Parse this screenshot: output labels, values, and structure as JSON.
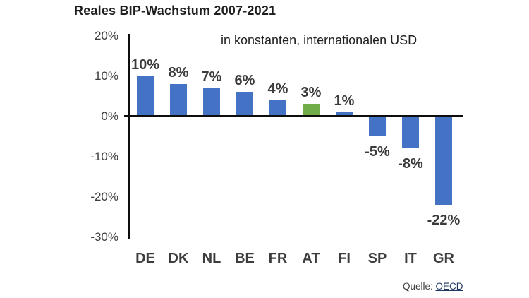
{
  "header": {
    "title": "Reales BIP-Wachstum 2007-2021",
    "subtitle": "in konstanten, internationalen USD"
  },
  "chart_data": {
    "type": "bar",
    "title": "Reales BIP-Wachstum 2007-2021",
    "subtitle": "in konstanten, internationalen USD",
    "categories": [
      "DE",
      "DK",
      "NL",
      "BE",
      "FR",
      "AT",
      "FI",
      "SP",
      "IT",
      "GR"
    ],
    "values": [
      10,
      8,
      7,
      6,
      4,
      3,
      1,
      -5,
      -8,
      -22
    ],
    "value_labels": [
      "10%",
      "8%",
      "7%",
      "6%",
      "4%",
      "3%",
      "1%",
      "-5%",
      "-8%",
      "-22%"
    ],
    "unit": "%",
    "ylim": [
      -30,
      20
    ],
    "yticks": [
      20,
      10,
      0,
      -10,
      -20,
      -30
    ],
    "ytick_labels": [
      "20%",
      "10%",
      "0%",
      "-10%",
      "-20%",
      "-30%"
    ],
    "grid": false,
    "legend": false,
    "colors": {
      "bar_default": "#4472C4",
      "bar_highlight": "#70AD47",
      "axis": "#0d0d0d",
      "label_text": "#3b3b3b"
    },
    "highlight_category": "AT"
  },
  "footer": {
    "source_label": "Quelle:",
    "source_link": "OECD"
  }
}
